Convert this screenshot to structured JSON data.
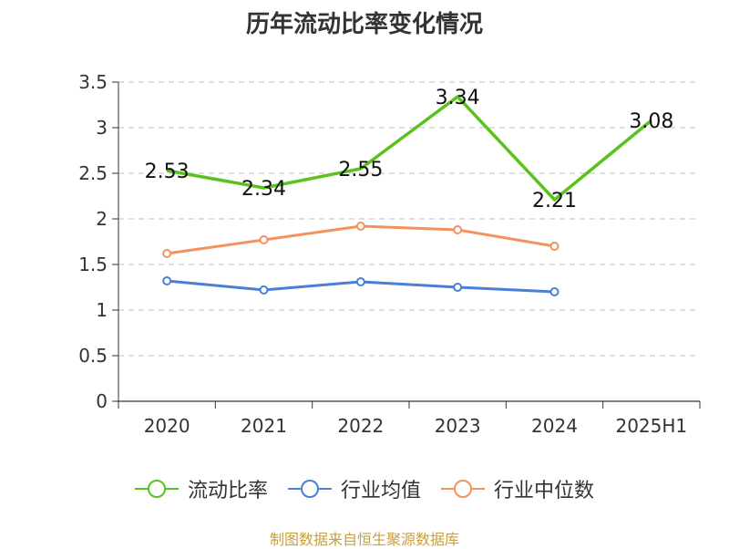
{
  "chart_data": {
    "type": "line",
    "title": "历年流动比率变化情况",
    "categories": [
      "2020",
      "2021",
      "2022",
      "2023",
      "2024",
      "2025H1"
    ],
    "ylim": [
      0,
      3.5
    ],
    "yticks": [
      "0",
      "0.5",
      "1",
      "1.5",
      "2",
      "2.5",
      "3",
      "3.5"
    ],
    "grid": true,
    "legend_position": "bottom",
    "series": [
      {
        "name": "流动比率",
        "color": "#5bc21d",
        "values": [
          2.53,
          2.34,
          2.55,
          3.34,
          2.21,
          3.08
        ],
        "labels": [
          "2.53",
          "2.34",
          "2.55",
          "3.34",
          "2.21",
          "3.08"
        ]
      },
      {
        "name": "行业均值",
        "color": "#4a7fd6",
        "values": [
          1.32,
          1.22,
          1.31,
          1.25,
          1.2,
          null
        ]
      },
      {
        "name": "行业中位数",
        "color": "#f4925e",
        "values": [
          1.62,
          1.77,
          1.92,
          1.88,
          1.7,
          null
        ]
      }
    ]
  },
  "footer": {
    "source": "制图数据来自恒生聚源数据库"
  }
}
